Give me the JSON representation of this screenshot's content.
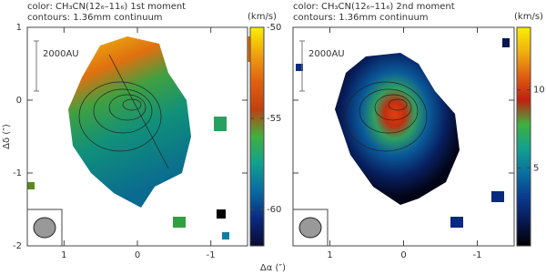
{
  "chart_data": [
    {
      "type": "heatmap",
      "title": "color: CH₃CN(12₆–11₆) 1st moment",
      "subtitle": "contours: 1.36mm continuum",
      "xlabel": "Δα (″)",
      "ylabel": "Δδ (″)",
      "scale_label": "2000AU",
      "xlim": [
        1.5,
        -1.5
      ],
      "ylim": [
        -2,
        1
      ],
      "xticks": [
        1,
        0,
        -1
      ],
      "yticks": [
        1,
        0,
        -1,
        -2
      ],
      "colorbar_label": "(km/s)",
      "clim": [
        -62,
        -50
      ],
      "cticks": [
        -50,
        -55,
        -60
      ],
      "colormap": [
        "#0a0a30",
        "#0a2a80",
        "#0a6aa0",
        "#10a090",
        "#40b040",
        "#c04010",
        "#e06010",
        "#f0a010",
        "#f8f000"
      ]
    },
    {
      "type": "heatmap",
      "title": "color: CH₃CN(12₆–11₆) 2nd moment",
      "subtitle": "contours: 1.36mm continuum",
      "scale_label": "2000AU",
      "xlim": [
        1.5,
        -1.5
      ],
      "ylim": [
        -2,
        1
      ],
      "xticks": [
        1,
        0,
        -1
      ],
      "yticks": [
        1,
        0,
        -1,
        -2
      ],
      "colorbar_label": "(km/s)",
      "clim": [
        0,
        14
      ],
      "cticks": [
        10,
        5
      ],
      "colormap": [
        "#000000",
        "#081850",
        "#0a3a90",
        "#0a70a0",
        "#10a090",
        "#40b040",
        "#c02010",
        "#e06010",
        "#f0b010",
        "#f8f000"
      ]
    }
  ]
}
